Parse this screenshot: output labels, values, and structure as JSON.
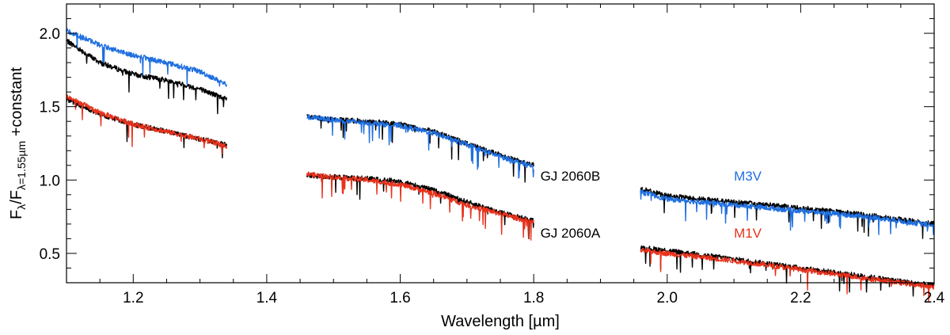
{
  "chart_data": {
    "type": "line",
    "xlabel": "Wavelength [µm]",
    "ylabel": {
      "base": "F",
      "sub1": "λ",
      "mid": "/F",
      "sub2": "λ=1.55µm",
      "suffix": " +constant"
    },
    "xlim": [
      1.1,
      2.4
    ],
    "ylim": [
      0.3,
      2.2
    ],
    "xticks": [
      1.2,
      1.4,
      1.6,
      1.8,
      2.0,
      2.2,
      2.4
    ],
    "xtick_labels": [
      "1.2",
      "1.4",
      "1.6",
      "1.8",
      "2.0",
      "2.2",
      "2.4"
    ],
    "yticks": [
      0.5,
      1.0,
      1.5,
      2.0
    ],
    "ytick_labels": [
      "0.5",
      "1.0",
      "1.5",
      "2.0"
    ],
    "colors": {
      "observed": "#000000",
      "m3v": "#1f6fe0",
      "m1v": "#e8321c"
    },
    "series": [
      {
        "name": "GJ 2060B (observed)",
        "color_key": "observed",
        "segments": [
          {
            "x": [
              1.1,
              1.15,
              1.2,
              1.25,
              1.3,
              1.34
            ],
            "y": [
              1.95,
              1.8,
              1.72,
              1.68,
              1.62,
              1.55
            ]
          },
          {
            "x": [
              1.46,
              1.5,
              1.55,
              1.6,
              1.65,
              1.7,
              1.75,
              1.8
            ],
            "y": [
              1.43,
              1.41,
              1.4,
              1.38,
              1.33,
              1.25,
              1.17,
              1.1
            ]
          },
          {
            "x": [
              1.96,
              2.0,
              2.1,
              2.2,
              2.3,
              2.4
            ],
            "y": [
              0.94,
              0.89,
              0.85,
              0.81,
              0.76,
              0.7
            ]
          }
        ]
      },
      {
        "name": "M3V",
        "color_key": "m3v",
        "segments": [
          {
            "x": [
              1.1,
              1.15,
              1.2,
              1.25,
              1.3,
              1.34
            ],
            "y": [
              2.02,
              1.92,
              1.85,
              1.8,
              1.74,
              1.65
            ]
          },
          {
            "x": [
              1.46,
              1.5,
              1.55,
              1.6,
              1.65,
              1.7,
              1.75,
              1.8
            ],
            "y": [
              1.43,
              1.41,
              1.39,
              1.37,
              1.32,
              1.24,
              1.16,
              1.09
            ]
          },
          {
            "x": [
              1.96,
              2.0,
              2.1,
              2.2,
              2.3,
              2.4
            ],
            "y": [
              0.92,
              0.87,
              0.83,
              0.79,
              0.75,
              0.69
            ]
          }
        ]
      },
      {
        "name": "GJ 2060A (observed)",
        "color_key": "observed",
        "segments": [
          {
            "x": [
              1.1,
              1.15,
              1.2,
              1.25,
              1.3,
              1.34
            ],
            "y": [
              1.55,
              1.45,
              1.38,
              1.33,
              1.28,
              1.24
            ]
          },
          {
            "x": [
              1.46,
              1.5,
              1.55,
              1.6,
              1.65,
              1.7,
              1.75,
              1.8
            ],
            "y": [
              1.03,
              1.02,
              1.01,
              0.99,
              0.93,
              0.85,
              0.78,
              0.72
            ]
          },
          {
            "x": [
              1.96,
              2.0,
              2.1,
              2.2,
              2.3,
              2.4
            ],
            "y": [
              0.54,
              0.52,
              0.46,
              0.4,
              0.34,
              0.28
            ]
          }
        ]
      },
      {
        "name": "M1V",
        "color_key": "m1v",
        "segments": [
          {
            "x": [
              1.1,
              1.15,
              1.2,
              1.25,
              1.3,
              1.34
            ],
            "y": [
              1.57,
              1.46,
              1.38,
              1.33,
              1.28,
              1.23
            ]
          },
          {
            "x": [
              1.46,
              1.5,
              1.55,
              1.6,
              1.65,
              1.7,
              1.75,
              1.8
            ],
            "y": [
              1.04,
              1.02,
              1.0,
              0.97,
              0.91,
              0.83,
              0.77,
              0.71
            ]
          },
          {
            "x": [
              1.96,
              2.0,
              2.1,
              2.2,
              2.3,
              2.4
            ],
            "y": [
              0.52,
              0.5,
              0.45,
              0.39,
              0.33,
              0.27
            ]
          }
        ]
      }
    ],
    "annotations": [
      {
        "text": "GJ 2060B",
        "x": 1.81,
        "y": 1.03,
        "color_key": "observed"
      },
      {
        "text": "GJ 2060A",
        "x": 1.81,
        "y": 0.64,
        "color_key": "observed"
      },
      {
        "text": "M3V",
        "x": 2.1,
        "y": 1.03,
        "color_key": "m3v"
      },
      {
        "text": "M1V",
        "x": 2.1,
        "y": 0.64,
        "color_key": "m1v"
      }
    ]
  }
}
